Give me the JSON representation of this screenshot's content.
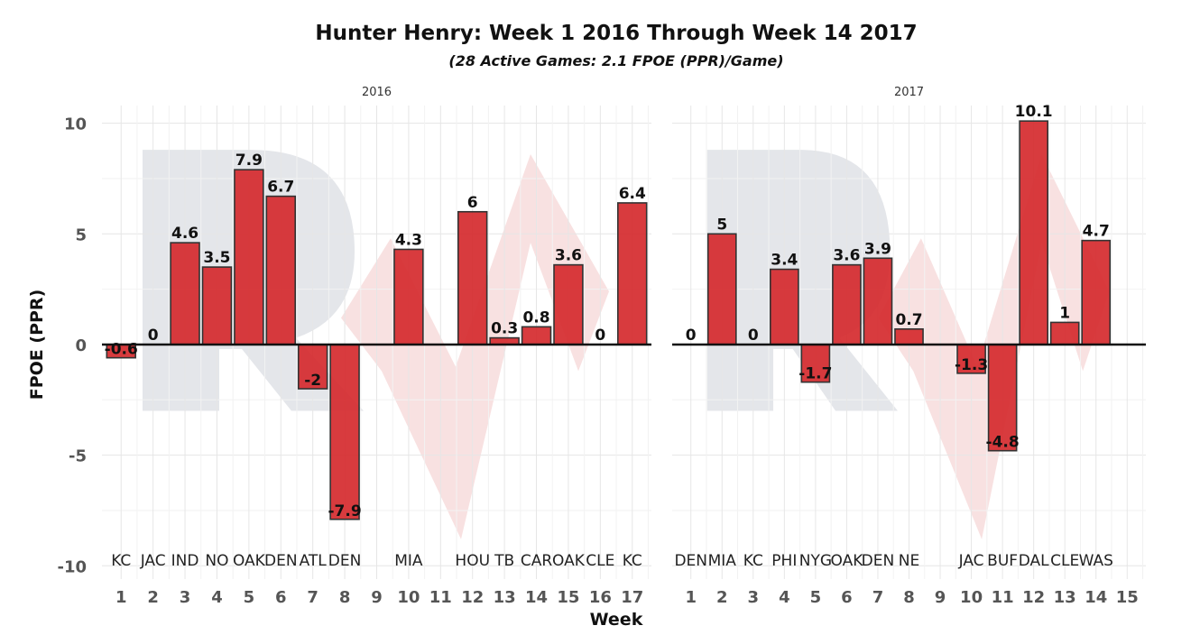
{
  "chart_data": {
    "type": "bar",
    "title": "Hunter Henry: Week 1 2016 Through Week 14 2017",
    "subtitle": "(28 Active Games: 2.1 FPOE (PPR)/Game)",
    "xlabel": "Week",
    "ylabel": "FPOE (PPR)",
    "ylim": [
      -10.6,
      10.8
    ],
    "yticks": [
      -10,
      -5,
      0,
      5,
      10
    ],
    "grid": true,
    "legend": "none",
    "bar_color": "#d52a2e",
    "watermark_colors": {
      "letter": "#e4e6ea",
      "chevron": "#f6d7d7"
    },
    "panels": [
      {
        "strip_label": "2016",
        "xticks": [
          "1",
          "2",
          "3",
          "4",
          "5",
          "6",
          "7",
          "8",
          "9",
          "10",
          "11",
          "12",
          "13",
          "14",
          "15",
          "16",
          "17"
        ],
        "x_range": [
          0.4,
          17.6
        ],
        "games": [
          {
            "week": 1,
            "opponent": "KC",
            "value": -0.6,
            "label": "-0.6"
          },
          {
            "week": 2,
            "opponent": "JAC",
            "value": 0,
            "label": "0"
          },
          {
            "week": 3,
            "opponent": "IND",
            "value": 4.6,
            "label": "4.6"
          },
          {
            "week": 4,
            "opponent": "NO",
            "value": 3.5,
            "label": "3.5"
          },
          {
            "week": 5,
            "opponent": "OAK",
            "value": 7.9,
            "label": "7.9"
          },
          {
            "week": 6,
            "opponent": "DEN",
            "value": 6.7,
            "label": "6.7"
          },
          {
            "week": 7,
            "opponent": "ATL",
            "value": -2,
            "label": "-2"
          },
          {
            "week": 8,
            "opponent": "DEN",
            "value": -7.9,
            "label": "-7.9"
          },
          {
            "week": 10,
            "opponent": "MIA",
            "value": 4.3,
            "label": "4.3"
          },
          {
            "week": 12,
            "opponent": "HOU",
            "value": 6,
            "label": "6"
          },
          {
            "week": 13,
            "opponent": "TB",
            "value": 0.3,
            "label": "0.3"
          },
          {
            "week": 14,
            "opponent": "CAR",
            "value": 0.8,
            "label": "0.8"
          },
          {
            "week": 15,
            "opponent": "OAK",
            "value": 3.6,
            "label": "3.6"
          },
          {
            "week": 16,
            "opponent": "CLE",
            "value": 0,
            "label": "0"
          },
          {
            "week": 17,
            "opponent": "KC",
            "value": 6.4,
            "label": "6.4"
          }
        ]
      },
      {
        "strip_label": "2017",
        "xticks": [
          "1",
          "2",
          "3",
          "4",
          "5",
          "6",
          "7",
          "8",
          "9",
          "10",
          "11",
          "12",
          "13",
          "14",
          "15"
        ],
        "x_range": [
          0.4,
          15.6
        ],
        "games": [
          {
            "week": 1,
            "opponent": "DEN",
            "value": 0,
            "label": "0"
          },
          {
            "week": 2,
            "opponent": "MIA",
            "value": 5,
            "label": "5"
          },
          {
            "week": 3,
            "opponent": "KC",
            "value": 0,
            "label": "0"
          },
          {
            "week": 4,
            "opponent": "PHI",
            "value": 3.4,
            "label": "3.4"
          },
          {
            "week": 5,
            "opponent": "NYG",
            "value": -1.7,
            "label": "-1.7"
          },
          {
            "week": 6,
            "opponent": "OAK",
            "value": 3.6,
            "label": "3.6"
          },
          {
            "week": 7,
            "opponent": "DEN",
            "value": 3.9,
            "label": "3.9"
          },
          {
            "week": 8,
            "opponent": "NE",
            "value": 0.7,
            "label": "0.7"
          },
          {
            "week": 10,
            "opponent": "JAC",
            "value": -1.3,
            "label": "-1.3"
          },
          {
            "week": 11,
            "opponent": "BUF",
            "value": -4.8,
            "label": "-4.8"
          },
          {
            "week": 12,
            "opponent": "DAL",
            "value": 10.1,
            "label": "10.1"
          },
          {
            "week": 13,
            "opponent": "CLE",
            "value": 1,
            "label": "1"
          },
          {
            "week": 14,
            "opponent": "WAS",
            "value": 4.7,
            "label": "4.7"
          }
        ]
      }
    ]
  }
}
